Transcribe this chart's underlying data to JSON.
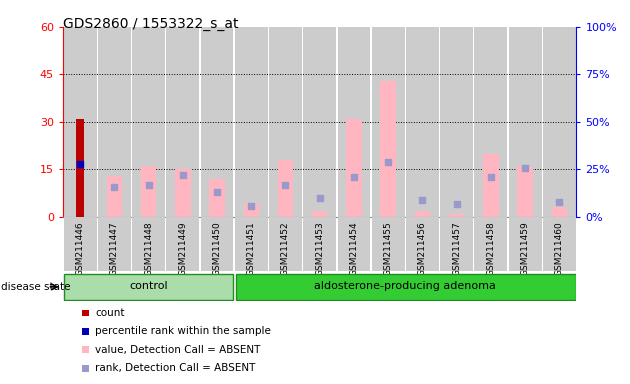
{
  "title": "GDS2860 / 1553322_s_at",
  "samples": [
    "GSM211446",
    "GSM211447",
    "GSM211448",
    "GSM211449",
    "GSM211450",
    "GSM211451",
    "GSM211452",
    "GSM211453",
    "GSM211454",
    "GSM211455",
    "GSM211456",
    "GSM211457",
    "GSM211458",
    "GSM211459",
    "GSM211460"
  ],
  "count_values": [
    31,
    0,
    0,
    0,
    0,
    0,
    0,
    0,
    0,
    0,
    0,
    0,
    0,
    0,
    0
  ],
  "percentile_rank_vals": [
    28,
    0,
    0,
    0,
    0,
    0,
    0,
    0,
    0,
    0,
    0,
    0,
    0,
    0,
    0
  ],
  "absent_value": [
    0,
    13,
    16,
    15,
    12,
    4,
    18,
    2,
    31,
    43,
    2,
    1,
    20,
    16,
    3
  ],
  "absent_rank": [
    0,
    16,
    17,
    22,
    13,
    6,
    17,
    10,
    21,
    29,
    9,
    7,
    21,
    26,
    8
  ],
  "control_count": 5,
  "ylim_left": [
    0,
    60
  ],
  "ylim_right": [
    0,
    100
  ],
  "yticks_left": [
    0,
    15,
    30,
    45,
    60
  ],
  "yticks_right": [
    0,
    25,
    50,
    75,
    100
  ],
  "disease_state_label": "disease state",
  "group_labels": [
    "control",
    "aldosterone-producing adenoma"
  ],
  "control_color": "#aaddaa",
  "adenoma_color": "#33cc33",
  "bar_bg_color": "#cccccc",
  "count_color": "#bb0000",
  "rank_color": "#0000bb",
  "absent_val_color": "#ffb6c1",
  "absent_rank_color": "#9999cc",
  "legend_labels": [
    "count",
    "percentile rank within the sample",
    "value, Detection Call = ABSENT",
    "rank, Detection Call = ABSENT"
  ],
  "legend_colors": [
    "#bb0000",
    "#0000bb",
    "#ffb6c1",
    "#9999cc"
  ]
}
